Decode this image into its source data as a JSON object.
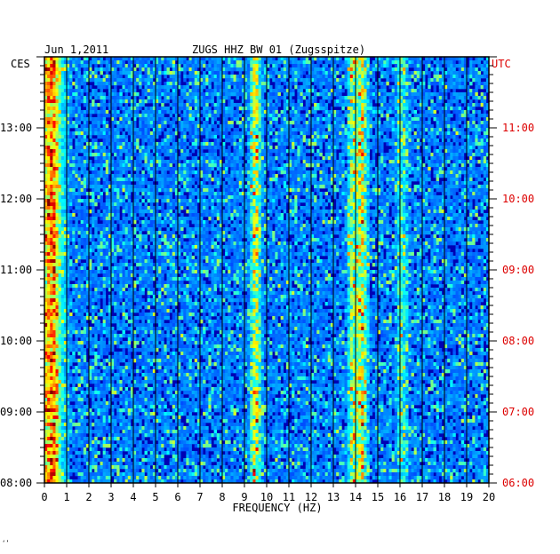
{
  "header": {
    "date": "Jun 1,2011",
    "station": "ZUGS HHZ BW 01 (Zugsspitze)"
  },
  "axes": {
    "left_timezone": "CES",
    "right_timezone": "UTC",
    "xlabel": "FREQUENCY (HZ)",
    "footer_mark": "‘’"
  },
  "colors": {
    "background": "#0000b4",
    "frame": "#000000",
    "utc_label": "#dd0000",
    "text": "#000000"
  },
  "chart_data": {
    "type": "heatmap",
    "description_of_colorscale": "blue-to-red spectrogram (jet)",
    "x": {
      "label": "FREQUENCY (HZ)",
      "range": [
        0,
        20
      ],
      "ticks": [
        "0",
        "1",
        "2",
        "3",
        "4",
        "5",
        "6",
        "7",
        "8",
        "9",
        "10",
        "11",
        "12",
        "13",
        "14",
        "15",
        "16",
        "17",
        "18",
        "19",
        "20"
      ]
    },
    "y_left": {
      "label": "CES",
      "ticks": [
        "08:00",
        "09:00",
        "10:00",
        "11:00",
        "12:00",
        "13:00"
      ]
    },
    "y_right": {
      "label": "UTC",
      "ticks": [
        "06:00",
        "07:00",
        "08:00",
        "09:00",
        "10:00",
        "11:00"
      ]
    },
    "time_range_utc": [
      "06:00",
      "12:00"
    ],
    "grid": "vertical lines at each 1 Hz",
    "energy_bands_hz": [
      {
        "center": 0.4,
        "level": 0.7
      },
      {
        "center": 9.5,
        "level": 0.85
      },
      {
        "center": 13.9,
        "level": 0.7
      },
      {
        "center": 14.3,
        "level": 0.85
      },
      {
        "center": 16.1,
        "level": 0.45
      }
    ]
  }
}
